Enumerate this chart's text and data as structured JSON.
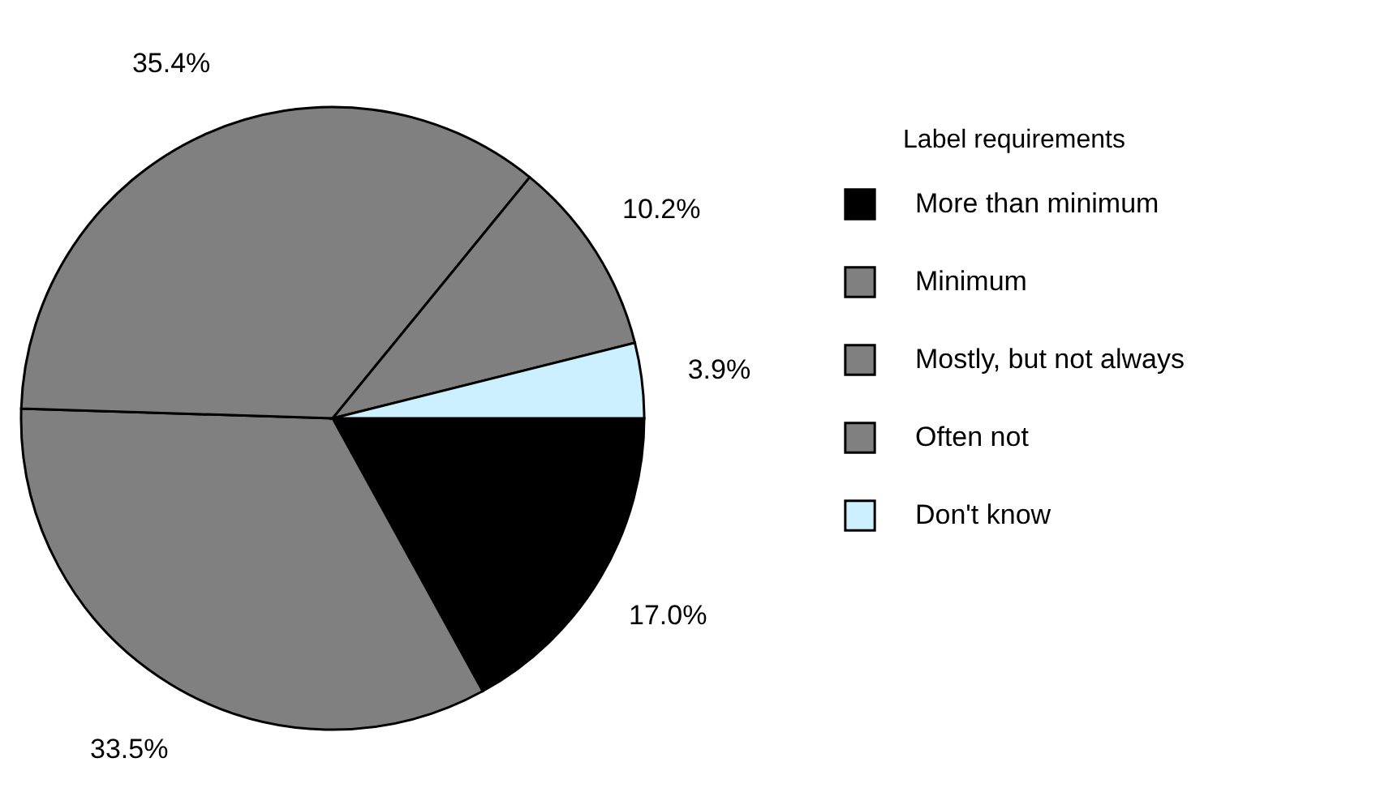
{
  "chart_data": {
    "type": "pie",
    "legend_title": "Label requirements",
    "legend": "right",
    "categories": [
      "More than minimum",
      "Minimum",
      "Mostly, but not always",
      "Often not",
      "Don't know"
    ],
    "values": [
      17.0,
      33.5,
      35.4,
      10.2,
      3.9
    ],
    "colors": [
      "#000000",
      "#808080",
      "#808080",
      "#808080",
      "#ccf0ff"
    ],
    "value_labels": [
      "17.0%",
      "33.5%",
      "35.4%",
      "10.2%",
      "3.9%"
    ]
  }
}
